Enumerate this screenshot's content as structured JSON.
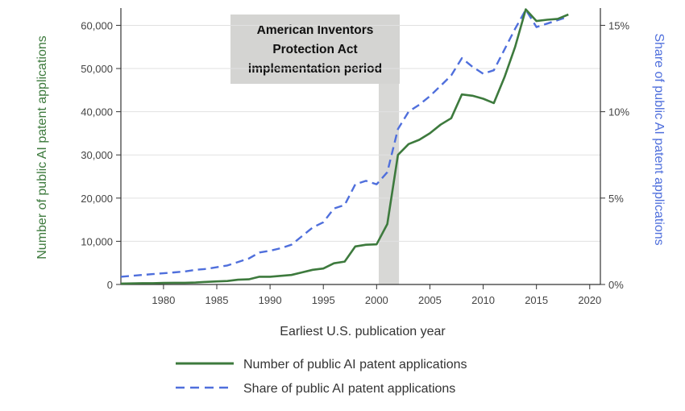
{
  "chart_data": {
    "type": "line",
    "xlabel": "Earliest U.S. publication year",
    "ylabel_left": "Number of public AI patent applications",
    "ylabel_right": "Share of public AI patent applications",
    "xlim": [
      1976,
      2021
    ],
    "ylim_left": [
      0,
      64000
    ],
    "ylim_right": [
      0,
      16
    ],
    "x_ticks": [
      1980,
      1985,
      1990,
      1995,
      2000,
      2005,
      2010,
      2015,
      2020
    ],
    "y_left_ticks": [
      0,
      10000,
      20000,
      30000,
      40000,
      50000,
      60000
    ],
    "y_left_tick_labels": [
      "0",
      "10,000",
      "20,000",
      "30,000",
      "40,000",
      "50,000",
      "60,000"
    ],
    "y_right_ticks": [
      0,
      5,
      10,
      15
    ],
    "y_right_tick_labels": [
      "0%",
      "5%",
      "10%",
      "15%"
    ],
    "shaded_region": {
      "x_start": 2000.2,
      "x_end": 2002.1,
      "label_lines": [
        "American Inventors",
        "Protection Act",
        "implementation period"
      ]
    },
    "series": [
      {
        "name": "Number of public AI patent applications",
        "axis": "left",
        "color": "#3d7a3d",
        "style": "solid",
        "x": [
          1976,
          1977,
          1978,
          1979,
          1980,
          1981,
          1982,
          1983,
          1984,
          1985,
          1986,
          1987,
          1988,
          1989,
          1990,
          1991,
          1992,
          1993,
          1994,
          1995,
          1996,
          1997,
          1998,
          1999,
          2000,
          2001,
          2002,
          2003,
          2004,
          2005,
          2006,
          2007,
          2008,
          2009,
          2010,
          2011,
          2012,
          2013,
          2014,
          2015,
          2016,
          2017,
          2018
        ],
        "values": [
          200,
          250,
          300,
          300,
          350,
          400,
          400,
          450,
          600,
          700,
          800,
          1100,
          1200,
          1800,
          1800,
          2000,
          2200,
          2800,
          3400,
          3700,
          4900,
          5300,
          8800,
          9200,
          9300,
          14000,
          30000,
          32500,
          33500,
          35000,
          37000,
          38500,
          44000,
          43700,
          43000,
          42000,
          48000,
          55000,
          63700,
          61000,
          61300,
          61500,
          62500
        ]
      },
      {
        "name": "Share of public AI patent applications",
        "axis": "right",
        "color": "#4f6fdc",
        "style": "dashed",
        "x": [
          1976,
          1977,
          1978,
          1979,
          1980,
          1981,
          1982,
          1983,
          1984,
          1985,
          1986,
          1987,
          1988,
          1989,
          1990,
          1991,
          1992,
          1993,
          1994,
          1995,
          1996,
          1997,
          1998,
          1999,
          2000,
          2001,
          2002,
          2003,
          2004,
          2005,
          2006,
          2007,
          2008,
          2009,
          2010,
          2011,
          2012,
          2013,
          2014,
          2015,
          2016,
          2017,
          2018
        ],
        "values": [
          0.45,
          0.5,
          0.55,
          0.6,
          0.65,
          0.7,
          0.75,
          0.85,
          0.9,
          1.0,
          1.1,
          1.3,
          1.5,
          1.85,
          1.95,
          2.1,
          2.3,
          2.8,
          3.3,
          3.6,
          4.4,
          4.6,
          5.8,
          6.0,
          5.8,
          6.5,
          9.0,
          10.0,
          10.4,
          10.9,
          11.5,
          12.1,
          13.1,
          12.6,
          12.2,
          12.4,
          13.6,
          14.8,
          15.9,
          14.9,
          15.1,
          15.3,
          15.5
        ]
      }
    ],
    "legend": {
      "placement": "bottom",
      "entries": [
        "Number of public AI patent applications",
        "Share of public AI patent applications"
      ]
    }
  }
}
